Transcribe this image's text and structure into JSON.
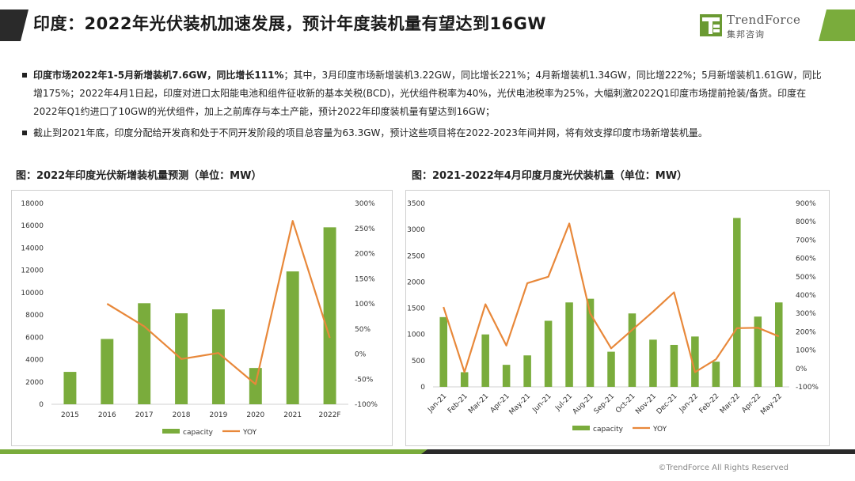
{
  "header": {
    "title": "印度：2022年光伏装机加速发展，预计年度装机量有望达到16GW",
    "logo_name": "TrendForce",
    "logo_sub": "集邦咨询"
  },
  "bullets": [
    {
      "bold": "印度市场2022年1-5月新增装机7.6GW，同比增长111%",
      "text": "；其中，3月印度市场新增装机3.22GW，同比增长221%；4月新增装机1.34GW，同比增222%；5月新增装机1.61GW，同比增175%；2022年4月1日起，印度对进口太阳能电池和组件征收新的基本关税(BCD)，光伏组件税率为40%，光伏电池税率为25%，大幅刺激2022Q1印度市场提前抢装/备货。印度在2022年Q1约进口了10GW的光伏组件，加上之前库存与本土产能，预计2022年印度装机量有望达到16GW；"
    },
    {
      "bold": "",
      "text": "截止到2021年底，印度分配给开发商和处于不同开发阶段的项目总容量为63.3GW，预计这些项目将在2022-2023年间并网，将有效支撑印度市场新增装机量。"
    }
  ],
  "colors": {
    "bar": "#7aac3c",
    "line": "#e8883a",
    "grid": "#d9d9d9",
    "axis_text": "#333333"
  },
  "chart_data": [
    {
      "type": "bar",
      "title": "图：2022年印度光伏新增装机量预测（单位：MW）",
      "categories": [
        "2015",
        "2016",
        "2017",
        "2018",
        "2019",
        "2020",
        "2021",
        "2022F"
      ],
      "series": [
        {
          "name": "capacity",
          "type": "bar",
          "axis": "left",
          "values": [
            2900,
            5850,
            9050,
            8150,
            8500,
            3250,
            11900,
            15850
          ]
        },
        {
          "name": "YOY",
          "type": "line",
          "axis": "right",
          "values": [
            null,
            100,
            55,
            -10,
            2,
            -60,
            265,
            32
          ]
        }
      ],
      "ylim": [
        0,
        18000
      ],
      "yticks": [
        0,
        2000,
        4000,
        6000,
        8000,
        10000,
        12000,
        14000,
        16000,
        18000
      ],
      "y2lim": [
        -100,
        300
      ],
      "y2ticks": [
        "-100%",
        "-50%",
        "0%",
        "50%",
        "100%",
        "150%",
        "200%",
        "250%",
        "300%"
      ],
      "legend": [
        "capacity",
        "YOY"
      ],
      "legend_position": "bottom",
      "grid": false
    },
    {
      "type": "bar",
      "title": "图：2021-2022年4月印度月度光伏装机量（单位：MW）",
      "categories": [
        "Jan-21",
        "Feb-21",
        "Mar-21",
        "Apr-21",
        "May-21",
        "Jun-21",
        "Jul-21",
        "Aug-21",
        "Sep-21",
        "Oct-21",
        "Nov-21",
        "Dec-21",
        "Jan-22",
        "Feb-22",
        "Mar-22",
        "Apr-22",
        "May-22"
      ],
      "series": [
        {
          "name": "capacity",
          "type": "bar",
          "axis": "left",
          "values": [
            1330,
            280,
            1000,
            420,
            600,
            1260,
            1610,
            1680,
            670,
            1400,
            900,
            800,
            960,
            480,
            3220,
            1340,
            1610
          ]
        },
        {
          "name": "YOY",
          "type": "line",
          "axis": "right",
          "values": [
            335,
            -20,
            350,
            125,
            465,
            500,
            790,
            300,
            110,
            210,
            310,
            415,
            -20,
            50,
            220,
            222,
            175
          ]
        }
      ],
      "ylim": [
        0,
        3500
      ],
      "yticks": [
        0,
        500,
        1000,
        1500,
        2000,
        2500,
        3000,
        3500
      ],
      "y2lim": [
        -100,
        900
      ],
      "y2ticks": [
        "-100%",
        "0%",
        "100%",
        "200%",
        "300%",
        "400%",
        "500%",
        "600%",
        "700%",
        "800%",
        "900%"
      ],
      "legend": [
        "capacity",
        "YOY"
      ],
      "legend_position": "bottom",
      "grid": false
    }
  ],
  "footer": {
    "copyright": "©TrendForce All Rights Reserved"
  }
}
